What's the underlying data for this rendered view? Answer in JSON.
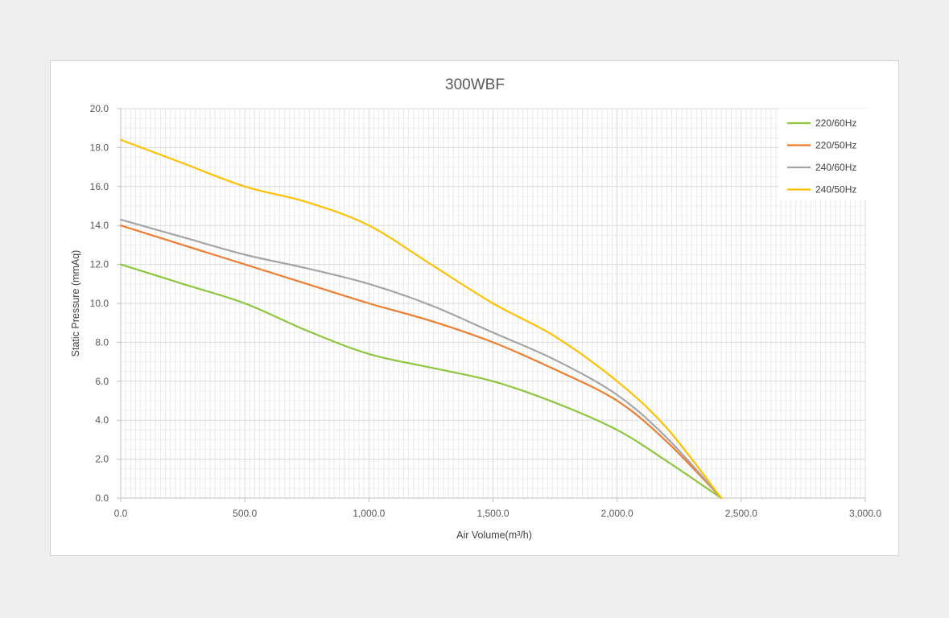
{
  "chart_data": {
    "type": "line",
    "title": "300WBF",
    "xlabel": "Air Volume(m³/h)",
    "ylabel": "Static Pressure (mmAq)",
    "xlim": [
      0,
      3000
    ],
    "ylim": [
      0,
      20
    ],
    "x_ticks": [
      "0.0",
      "500.0",
      "1,000.0",
      "1,500.0",
      "2,000.0",
      "2,500.0",
      "3,000.0"
    ],
    "y_ticks": [
      "0.0",
      "2.0",
      "4.0",
      "6.0",
      "8.0",
      "10.0",
      "12.0",
      "14.0",
      "16.0",
      "18.0",
      "20.0"
    ],
    "grid": true,
    "legend_position": "top-right",
    "series": [
      {
        "name": "220/60Hz",
        "color": "#8dc63f",
        "x": [
          0,
          250,
          500,
          750,
          1000,
          1250,
          1500,
          1750,
          2000,
          2200,
          2420
        ],
        "values": [
          12.0,
          11.0,
          10.0,
          8.6,
          7.4,
          6.7,
          6.0,
          4.9,
          3.5,
          1.9,
          0.0
        ]
      },
      {
        "name": "220/50Hz",
        "color": "#ed7d31",
        "x": [
          0,
          250,
          500,
          750,
          1000,
          1250,
          1500,
          1750,
          2000,
          2200,
          2420
        ],
        "values": [
          14.0,
          13.0,
          12.0,
          11.0,
          10.0,
          9.1,
          8.0,
          6.6,
          5.0,
          2.9,
          0.0
        ]
      },
      {
        "name": "240/60Hz",
        "color": "#a5a5a5",
        "x": [
          0,
          250,
          500,
          750,
          1000,
          1250,
          1500,
          1750,
          2000,
          2200,
          2420
        ],
        "values": [
          14.3,
          13.4,
          12.5,
          11.8,
          11.0,
          9.9,
          8.5,
          7.1,
          5.3,
          3.1,
          0.0
        ]
      },
      {
        "name": "240/50Hz",
        "color": "#ffc000",
        "x": [
          0,
          250,
          500,
          750,
          1000,
          1250,
          1500,
          1750,
          2000,
          2200,
          2420
        ],
        "values": [
          18.4,
          17.2,
          16.0,
          15.2,
          14.0,
          12.0,
          10.0,
          8.3,
          6.0,
          3.6,
          0.0
        ]
      }
    ]
  }
}
